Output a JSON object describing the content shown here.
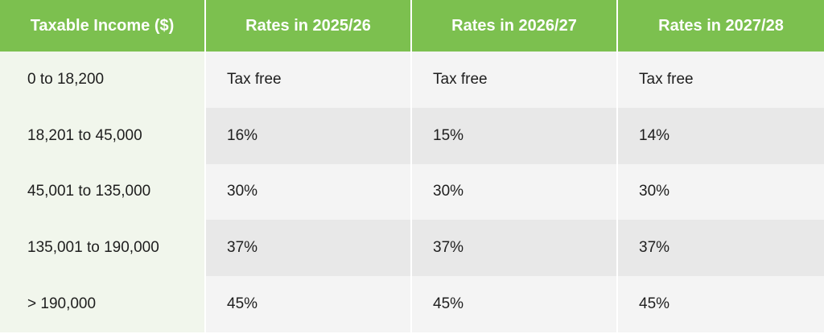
{
  "headers": [
    "Taxable Income ($)",
    "Rates in 2025/26",
    "Rates in 2026/27",
    "Rates in 2027/28"
  ],
  "rows": [
    {
      "income": "0 to 18,200",
      "rates": [
        "Tax free",
        "Tax free",
        "Tax free"
      ]
    },
    {
      "income": "18,201 to 45,000",
      "rates": [
        "16%",
        "15%",
        "14%"
      ]
    },
    {
      "income": "45,001 to 135,000",
      "rates": [
        "30%",
        "30%",
        "30%"
      ]
    },
    {
      "income": "135,001 to 190,000",
      "rates": [
        "37%",
        "37%",
        "37%"
      ]
    },
    {
      "income": "> 190,000",
      "rates": [
        "45%",
        "45%",
        "45%"
      ]
    }
  ],
  "colors": {
    "header_green": "#7cc04f",
    "income_column_tint": "#f1f6ec",
    "row_light": "#f4f4f4",
    "row_dark": "#e8e8e8"
  }
}
